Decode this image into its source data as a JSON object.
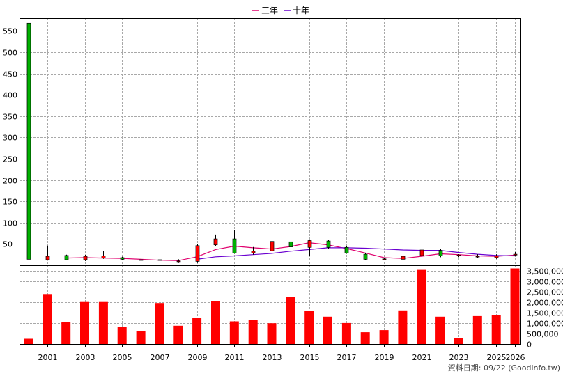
{
  "legend": [
    {
      "label": "三年",
      "color": "#e0006e"
    },
    {
      "label": "十年",
      "color": "#6a00d0"
    }
  ],
  "source_text": "資料日期: 09/22 (Goodinfo.tw)",
  "chart_data": [
    {
      "type": "candlestick",
      "ylim": [
        0,
        580
      ],
      "y_ticks": [
        50,
        100,
        150,
        200,
        250,
        300,
        350,
        400,
        450,
        500,
        550
      ],
      "x_tick_labels": [
        "2001",
        "2003",
        "2005",
        "2007",
        "2009",
        "2011",
        "2013",
        "2015",
        "2017",
        "2019",
        "2021",
        "2023",
        "2025",
        "2026"
      ],
      "colors": {
        "up": "#ff0000",
        "down": "#00b000"
      },
      "candles": [
        {
          "year": 2000,
          "open": 568,
          "close": 14,
          "high": 568,
          "low": 14
        },
        {
          "year": 2001,
          "open": 13,
          "close": 21,
          "high": 46,
          "low": 11
        },
        {
          "year": 2002,
          "open": 23,
          "close": 13,
          "high": 25,
          "low": 12
        },
        {
          "year": 2003,
          "open": 13,
          "close": 21,
          "high": 25,
          "low": 10
        },
        {
          "year": 2004,
          "open": 17,
          "close": 22,
          "high": 33,
          "low": 15
        },
        {
          "year": 2005,
          "open": 18,
          "close": 14,
          "high": 20,
          "low": 12
        },
        {
          "year": 2006,
          "open": 12,
          "close": 13,
          "high": 16,
          "low": 10
        },
        {
          "year": 2007,
          "open": 12,
          "close": 13,
          "high": 18,
          "low": 9
        },
        {
          "year": 2008,
          "open": 9,
          "close": 10,
          "high": 14,
          "low": 7
        },
        {
          "year": 2009,
          "open": 9,
          "close": 46,
          "high": 50,
          "low": 7
        },
        {
          "year": 2010,
          "open": 48,
          "close": 62,
          "high": 72,
          "low": 45
        },
        {
          "year": 2011,
          "open": 62,
          "close": 29,
          "high": 83,
          "low": 27
        },
        {
          "year": 2012,
          "open": 29,
          "close": 33,
          "high": 43,
          "low": 25
        },
        {
          "year": 2013,
          "open": 34,
          "close": 56,
          "high": 58,
          "low": 31
        },
        {
          "year": 2014,
          "open": 55,
          "close": 43,
          "high": 78,
          "low": 37
        },
        {
          "year": 2015,
          "open": 42,
          "close": 58,
          "high": 60,
          "low": 22
        },
        {
          "year": 2016,
          "open": 57,
          "close": 42,
          "high": 60,
          "low": 38
        },
        {
          "year": 2017,
          "open": 42,
          "close": 29,
          "high": 45,
          "low": 27
        },
        {
          "year": 2018,
          "open": 26,
          "close": 14,
          "high": 28,
          "low": 13
        },
        {
          "year": 2019,
          "open": 14,
          "close": 15,
          "high": 17,
          "low": 12
        },
        {
          "year": 2020,
          "open": 14,
          "close": 21,
          "high": 23,
          "low": 8
        },
        {
          "year": 2021,
          "open": 23,
          "close": 36,
          "high": 38,
          "low": 21
        },
        {
          "year": 2022,
          "open": 35,
          "close": 22,
          "high": 38,
          "low": 19
        },
        {
          "year": 2023,
          "open": 22,
          "close": 24,
          "high": 26,
          "low": 19
        },
        {
          "year": 2024,
          "open": 20,
          "close": 21,
          "high": 26,
          "low": 18
        },
        {
          "year": 2025,
          "open": 18,
          "close": 22,
          "high": 26,
          "low": 15
        },
        {
          "year": 2026,
          "open": 24,
          "close": 26,
          "high": 31,
          "low": 21
        }
      ],
      "series": [
        {
          "name": "三年",
          "color": "#e0006e",
          "x": [
            2002,
            2003,
            2004,
            2005,
            2006,
            2007,
            2008,
            2009,
            2010,
            2011,
            2012,
            2013,
            2014,
            2015,
            2016,
            2017,
            2018,
            2019,
            2020,
            2021,
            2022,
            2023,
            2024,
            2025,
            2026
          ],
          "values": [
            17,
            18,
            17,
            16,
            14,
            12,
            11,
            20,
            37,
            45,
            41,
            38,
            44,
            53,
            48,
            39,
            29,
            18,
            16,
            21,
            27,
            25,
            22,
            21,
            24
          ]
        },
        {
          "name": "十年",
          "color": "#6a00d0",
          "x": [
            2009,
            2010,
            2011,
            2012,
            2013,
            2014,
            2015,
            2016,
            2017,
            2018,
            2019,
            2020,
            2021,
            2022,
            2023,
            2024,
            2025,
            2026
          ],
          "values": [
            14,
            20,
            22,
            25,
            28,
            33,
            37,
            41,
            41,
            40,
            38,
            36,
            35,
            35,
            30,
            26,
            23,
            22
          ]
        }
      ]
    },
    {
      "type": "bar",
      "ylim": [
        0,
        3750000
      ],
      "y_ticks": [
        "0",
        "500,000",
        "1,000,000",
        "1,500,000",
        "2,000,000",
        "2,500,000",
        "3,000,000",
        "3,500,000"
      ],
      "color": "#ff0000",
      "categories": [
        2000,
        2001,
        2002,
        2003,
        2004,
        2005,
        2006,
        2007,
        2008,
        2009,
        2010,
        2011,
        2012,
        2013,
        2014,
        2015,
        2016,
        2017,
        2018,
        2019,
        2020,
        2021,
        2022,
        2023,
        2024,
        2025,
        2026
      ],
      "values": [
        250000,
        2380000,
        1050000,
        2000000,
        2000000,
        820000,
        600000,
        1950000,
        870000,
        1230000,
        2050000,
        1080000,
        1130000,
        990000,
        2240000,
        1580000,
        1300000,
        1000000,
        560000,
        660000,
        1600000,
        3530000,
        1300000,
        300000,
        1330000,
        1370000,
        3600000
      ]
    }
  ]
}
